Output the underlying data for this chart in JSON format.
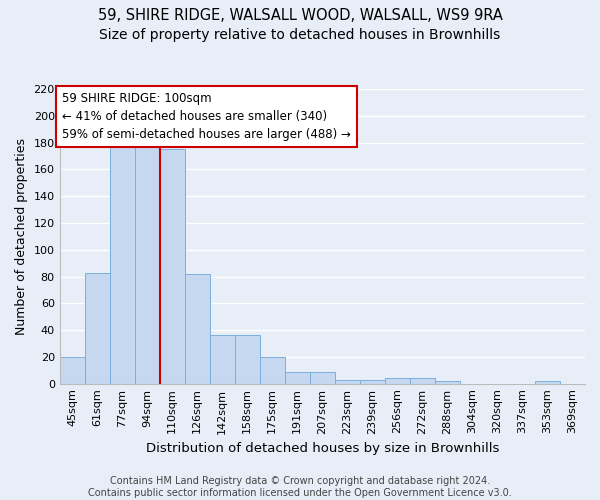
{
  "title1": "59, SHIRE RIDGE, WALSALL WOOD, WALSALL, WS9 9RA",
  "title2": "Size of property relative to detached houses in Brownhills",
  "xlabel": "Distribution of detached houses by size in Brownhills",
  "ylabel": "Number of detached properties",
  "bar_labels": [
    "45sqm",
    "61sqm",
    "77sqm",
    "94sqm",
    "110sqm",
    "126sqm",
    "142sqm",
    "158sqm",
    "175sqm",
    "191sqm",
    "207sqm",
    "223sqm",
    "239sqm",
    "256sqm",
    "272sqm",
    "288sqm",
    "304sqm",
    "320sqm",
    "337sqm",
    "353sqm",
    "369sqm"
  ],
  "bar_values": [
    20,
    83,
    180,
    181,
    175,
    82,
    36,
    36,
    20,
    9,
    9,
    3,
    3,
    4,
    4,
    2,
    0,
    0,
    0,
    2,
    0
  ],
  "bar_color": "#c5d8f0",
  "bar_edgecolor": "#7aafdd",
  "vline_x": 3.5,
  "vline_color": "#cc0000",
  "annotation_text": "59 SHIRE RIDGE: 100sqm\n← 41% of detached houses are smaller (340)\n59% of semi-detached houses are larger (488) →",
  "annotation_box_color": "#cc0000",
  "ylim": [
    0,
    220
  ],
  "yticks": [
    0,
    20,
    40,
    60,
    80,
    100,
    120,
    140,
    160,
    180,
    200,
    220
  ],
  "footnote": "Contains HM Land Registry data © Crown copyright and database right 2024.\nContains public sector information licensed under the Open Government Licence v3.0.",
  "background_color": "#e8eef8",
  "grid_color": "#ffffff",
  "title1_fontsize": 10.5,
  "title2_fontsize": 10,
  "xlabel_fontsize": 9.5,
  "ylabel_fontsize": 9,
  "tick_fontsize": 8,
  "annot_fontsize": 8.5,
  "footnote_fontsize": 7
}
